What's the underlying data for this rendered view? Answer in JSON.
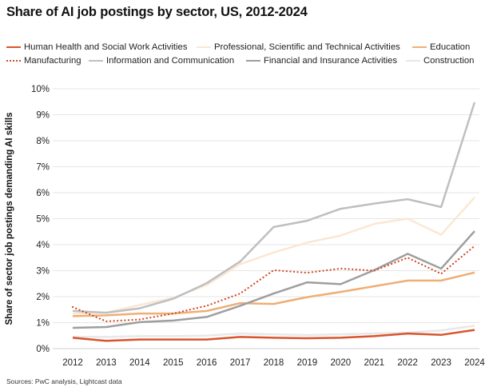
{
  "chart_data": {
    "type": "line",
    "title": "Share of AI job postings by sector, US, 2012-2024",
    "xlabel": "",
    "ylabel": "Share of sector job postings demanding AI skills",
    "x": [
      "2012",
      "2013",
      "2014",
      "2015",
      "2016",
      "2017",
      "2018",
      "2019",
      "2020",
      "2021",
      "2022",
      "2023",
      "2024"
    ],
    "ylim": [
      0,
      10
    ],
    "yticks": [
      "0%",
      "1%",
      "2%",
      "3%",
      "4%",
      "5%",
      "6%",
      "7%",
      "8%",
      "9%",
      "10%"
    ],
    "grid": true,
    "legend_position": "top",
    "series": [
      {
        "name": "Human Health and Social Work Activities",
        "color": "#d9542b",
        "style": "solid",
        "width": 2.5,
        "values": [
          0.42,
          0.3,
          0.35,
          0.35,
          0.35,
          0.45,
          0.42,
          0.4,
          0.42,
          0.48,
          0.58,
          0.53,
          0.72
        ]
      },
      {
        "name": "Professional, Scientific and Technical Activities",
        "color": "#fbe7d4",
        "style": "solid",
        "width": 2.5,
        "values": [
          1.35,
          1.38,
          1.68,
          1.95,
          2.45,
          3.25,
          3.7,
          4.08,
          4.35,
          4.8,
          5.0,
          4.38,
          5.82
        ]
      },
      {
        "name": "Education",
        "color": "#eeae76",
        "style": "solid",
        "width": 2.5,
        "values": [
          1.25,
          1.28,
          1.35,
          1.35,
          1.45,
          1.75,
          1.72,
          1.98,
          2.18,
          2.4,
          2.62,
          2.62,
          2.93
        ]
      },
      {
        "name": "Manufacturing",
        "color": "#cf4a23",
        "style": "dotted",
        "width": 2.2,
        "values": [
          1.6,
          1.05,
          1.12,
          1.35,
          1.65,
          2.12,
          3.02,
          2.92,
          3.08,
          3.0,
          3.5,
          2.88,
          3.95
        ]
      },
      {
        "name": "Information and Communication",
        "color": "#bfbfbf",
        "style": "solid",
        "width": 2.5,
        "values": [
          1.45,
          1.38,
          1.55,
          1.92,
          2.52,
          3.35,
          4.68,
          4.92,
          5.38,
          5.58,
          5.75,
          5.45,
          9.48
        ]
      },
      {
        "name": "Financial and Insurance Activities",
        "color": "#9e9e9e",
        "style": "solid",
        "width": 2.5,
        "values": [
          0.8,
          0.83,
          1.02,
          1.08,
          1.22,
          1.65,
          2.12,
          2.55,
          2.48,
          3.02,
          3.65,
          3.08,
          4.52
        ]
      },
      {
        "name": "Construction",
        "color": "#e8e8ea",
        "style": "solid",
        "width": 2.5,
        "values": [
          0.45,
          0.45,
          0.48,
          0.48,
          0.5,
          0.58,
          0.55,
          0.52,
          0.55,
          0.58,
          0.62,
          0.7,
          0.88
        ]
      }
    ]
  },
  "source": "Sources: PwC analysis, Lightcast data"
}
